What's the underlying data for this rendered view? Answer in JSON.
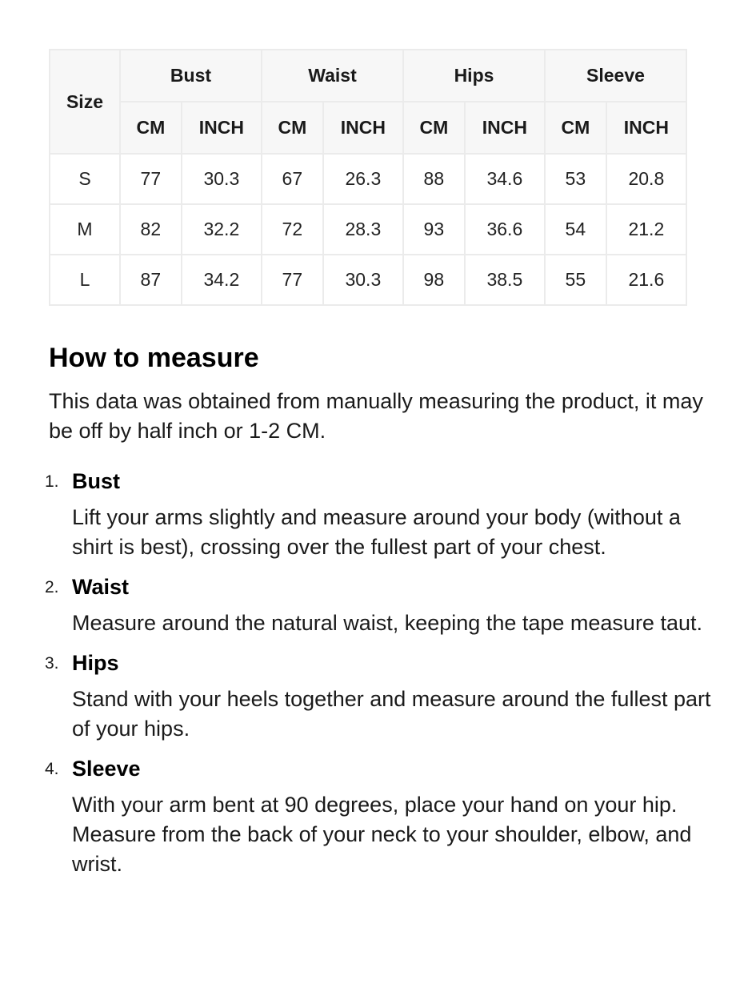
{
  "table": {
    "size_label": "Size",
    "groups": [
      "Bust",
      "Waist",
      "Hips",
      "Sleeve"
    ],
    "units": [
      "CM",
      "INCH"
    ],
    "rows": [
      [
        "S",
        "77",
        "30.3",
        "67",
        "26.3",
        "88",
        "34.6",
        "53",
        "20.8"
      ],
      [
        "M",
        "82",
        "32.2",
        "72",
        "28.3",
        "93",
        "36.6",
        "54",
        "21.2"
      ],
      [
        "L",
        "87",
        "34.2",
        "77",
        "30.3",
        "98",
        "38.5",
        "55",
        "21.6"
      ]
    ]
  },
  "guide": {
    "title": "How to measure",
    "intro": "This data was obtained from manually measuring the product, it may be off by half inch or 1-2 CM.",
    "steps": [
      {
        "num": "1.",
        "title": "Bust",
        "text": "Lift your arms slightly and measure around your body (without a shirt is best), crossing over the fullest part of your chest."
      },
      {
        "num": "2.",
        "title": "Waist",
        "text": "Measure around the natural waist, keeping the tape measure taut."
      },
      {
        "num": "3.",
        "title": "Hips",
        "text": "Stand with your heels together and measure around the fullest part of your hips."
      },
      {
        "num": "4.",
        "title": "Sleeve",
        "text": "With your arm bent at 90 degrees, place your hand on your hip. Measure from the back of your neck to your shoulder, elbow, and wrist."
      }
    ]
  }
}
